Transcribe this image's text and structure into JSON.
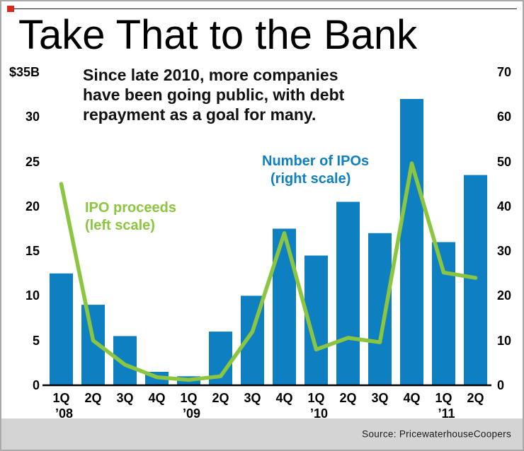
{
  "page": {
    "title": "Take That to the Bank",
    "source": "Source: PricewaterhouseCoopers"
  },
  "subtitle": {
    "line1": "Since late 2010, more companies",
    "line2": "have been going public, with debt",
    "line3": "repayment as a goal for many."
  },
  "annotations": {
    "line_series_label": {
      "line1": "IPO proceeds",
      "line2": "(left scale)"
    },
    "bar_series_label": {
      "line1": "Number of IPOs",
      "line2": "(right scale)"
    }
  },
  "colors": {
    "bar": "#0e7fc1",
    "line": "#8cc640",
    "accent_red": "#d42b1e",
    "source_band": "#d4d4d4"
  },
  "chart_data": {
    "type": "bar",
    "subtype": "bar+line combo, dual axis",
    "title": "Take That to the Bank",
    "grid": false,
    "legend_position": "inline annotations",
    "categories": [
      "1Q '08",
      "2Q '08",
      "3Q '08",
      "4Q '08",
      "1Q '09",
      "2Q '09",
      "3Q '09",
      "4Q '09",
      "1Q '10",
      "2Q '10",
      "3Q '10",
      "4Q '10",
      "1Q '11",
      "2Q '11"
    ],
    "series": [
      {
        "name": "Number of IPOs",
        "type": "bar",
        "axis": "right",
        "values": [
          25,
          18,
          11,
          3,
          2,
          12,
          20,
          35,
          29,
          41,
          34,
          64,
          32,
          47
        ]
      },
      {
        "name": "IPO proceeds",
        "type": "line",
        "axis": "left",
        "unit": "$B",
        "values": [
          22.5,
          5,
          2.3,
          0.9,
          0.6,
          1,
          6,
          17,
          4,
          5.3,
          4.8,
          24.8,
          12.6,
          12
        ]
      }
    ],
    "left_axis": {
      "label": "$35B",
      "min": 0,
      "max": 35,
      "ticks": [
        {
          "label": "$35B",
          "value": 35
        },
        {
          "label": "30",
          "value": 30
        },
        {
          "label": "25",
          "value": 25
        },
        {
          "label": "20",
          "value": 20
        },
        {
          "label": "15",
          "value": 15
        },
        {
          "label": "10",
          "value": 10
        },
        {
          "label": "5",
          "value": 5
        },
        {
          "label": "0",
          "value": 0
        }
      ]
    },
    "right_axis": {
      "min": 0,
      "max": 70,
      "ticks": [
        {
          "label": "70",
          "value": 70
        },
        {
          "label": "60",
          "value": 60
        },
        {
          "label": "50",
          "value": 50
        },
        {
          "label": "40",
          "value": 40
        },
        {
          "label": "30",
          "value": 30
        },
        {
          "label": "20",
          "value": 20
        },
        {
          "label": "10",
          "value": 10
        },
        {
          "label": "0",
          "value": 0
        }
      ]
    },
    "x_ticks": [
      {
        "quarter": "1Q",
        "year": "’08"
      },
      {
        "quarter": "2Q"
      },
      {
        "quarter": "3Q"
      },
      {
        "quarter": "4Q"
      },
      {
        "quarter": "1Q",
        "year": "’09"
      },
      {
        "quarter": "2Q"
      },
      {
        "quarter": "3Q"
      },
      {
        "quarter": "4Q"
      },
      {
        "quarter": "1Q",
        "year": "’10"
      },
      {
        "quarter": "2Q"
      },
      {
        "quarter": "3Q"
      },
      {
        "quarter": "4Q"
      },
      {
        "quarter": "1Q",
        "year": "’11"
      },
      {
        "quarter": "2Q"
      }
    ]
  }
}
